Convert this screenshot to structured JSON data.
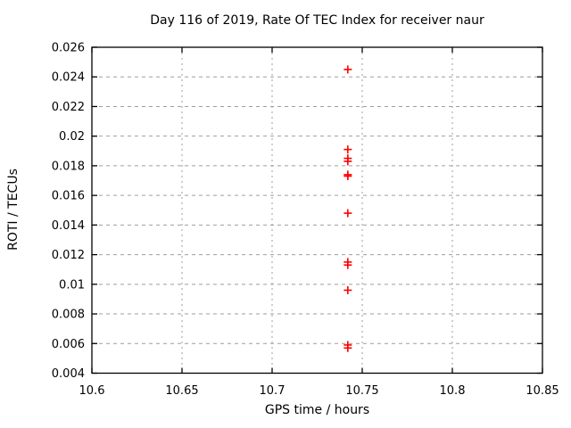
{
  "page": {
    "background": "#ffffff"
  },
  "chart_data": {
    "type": "scatter",
    "title": "Day 116 of 2019, Rate Of TEC Index for receiver naur",
    "xlabel": "GPS time / hours",
    "ylabel": "ROTI / TECUs",
    "xlim": [
      10.6,
      10.85
    ],
    "ylim": [
      0.004,
      0.026
    ],
    "xticks": [
      10.6,
      10.65,
      10.7,
      10.75,
      10.8,
      10.85
    ],
    "xtick_labels": [
      "10.6",
      "10.65",
      "10.7",
      "10.75",
      "10.8",
      "10.85"
    ],
    "yticks": [
      0.004,
      0.006,
      0.008,
      0.01,
      0.012,
      0.014,
      0.016,
      0.018,
      0.02,
      0.022,
      0.024,
      0.026
    ],
    "ytick_labels": [
      "0.004",
      "0.006",
      "0.008",
      "0.01",
      "0.012",
      "0.014",
      "0.016",
      "0.018",
      "0.02",
      "0.022",
      "0.024",
      "0.026"
    ],
    "grid": true,
    "legend": "none",
    "marker": "plus",
    "series": [
      {
        "name": "ROTI",
        "color": "#ff0000",
        "points": [
          [
            10.742,
            0.0245
          ],
          [
            10.742,
            0.0191
          ],
          [
            10.742,
            0.0185
          ],
          [
            10.742,
            0.0183
          ],
          [
            10.742,
            0.0174
          ],
          [
            10.742,
            0.0173
          ],
          [
            10.742,
            0.0148
          ],
          [
            10.742,
            0.0115
          ],
          [
            10.742,
            0.0113
          ],
          [
            10.742,
            0.0096
          ],
          [
            10.742,
            0.0059
          ],
          [
            10.742,
            0.0057
          ]
        ]
      }
    ],
    "colors": {
      "axis": "#000000",
      "grid": "#9e9e9e",
      "text": "#000000",
      "background": "#ffffff"
    }
  }
}
